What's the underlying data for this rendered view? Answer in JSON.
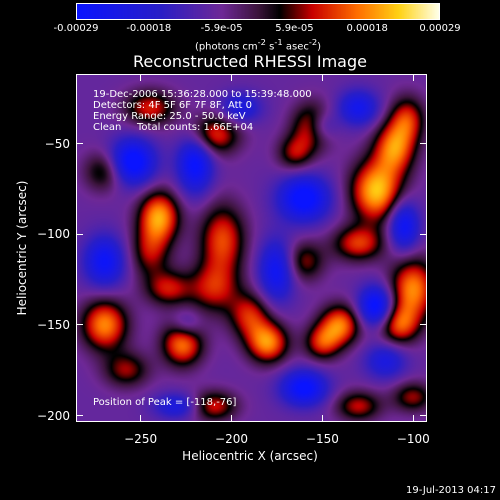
{
  "colorbar": {
    "ticks": [
      "-0.00029",
      "-0.00018",
      "-5.9e-05",
      "5.9e-05",
      "0.00018",
      "0.00029"
    ],
    "units_html": "(photons cm<sup>-2</sup> s<sup>-1</sup> asec<sup>-2</sup>)",
    "units": "(photons cm-2 s-1 asec-2)"
  },
  "title": "Reconstructed RHESSI Image",
  "info": {
    "line1": "19-Dec-2006 15:36:28.000 to 15:39:48.000",
    "line2": "Detectors: 4F 5F 6F 7F 8F, Att 0",
    "line3": "Energy Range: 25.0 - 50.0 keV",
    "line4_a": "Clean",
    "line4_b": "Total counts: 1.66E+04",
    "peak": "Position of Peak = [-118,-76]"
  },
  "timestamp": "19-Jul-2013 04:17",
  "chart_data": {
    "type": "heatmap",
    "title": "Reconstructed RHESSI Image",
    "xlabel": "Heliocentric X (arcsec)",
    "ylabel": "Heliocentric Y (arcsec)",
    "xlim": [
      -285,
      -93
    ],
    "ylim": [
      -203,
      -12
    ],
    "xticks": [
      -250,
      -200,
      -150,
      -100
    ],
    "yticks": [
      -200,
      -150,
      -100,
      -50
    ],
    "colorbar_range": [
      -0.00029,
      0.00029
    ],
    "colormap": "blue-purple-black-red-orange-yellow-white",
    "peak": [
      -118,
      -76
    ],
    "blobs": [
      {
        "x": -120,
        "y": -76,
        "v": 1.0,
        "sx": 10,
        "sy": 12
      },
      {
        "x": -110,
        "y": -52,
        "v": 0.8,
        "sx": 8,
        "sy": 10
      },
      {
        "x": -103,
        "y": -36,
        "v": 0.6,
        "sx": 7,
        "sy": 9
      },
      {
        "x": -100,
        "y": -130,
        "v": 0.85,
        "sx": 9,
        "sy": 12
      },
      {
        "x": -108,
        "y": -150,
        "v": 0.7,
        "sx": 8,
        "sy": 8
      },
      {
        "x": -140,
        "y": -150,
        "v": 0.8,
        "sx": 8,
        "sy": 8
      },
      {
        "x": -150,
        "y": -160,
        "v": 0.6,
        "sx": 7,
        "sy": 7
      },
      {
        "x": -205,
        "y": -103,
        "v": 0.7,
        "sx": 9,
        "sy": 14
      },
      {
        "x": -210,
        "y": -130,
        "v": 0.55,
        "sx": 10,
        "sy": 10
      },
      {
        "x": -180,
        "y": -160,
        "v": 0.85,
        "sx": 8,
        "sy": 8
      },
      {
        "x": -190,
        "y": -145,
        "v": 0.6,
        "sx": 8,
        "sy": 9
      },
      {
        "x": -227,
        "y": -160,
        "v": 0.85,
        "sx": 8,
        "sy": 9
      },
      {
        "x": -240,
        "y": -90,
        "v": 0.9,
        "sx": 8,
        "sy": 10
      },
      {
        "x": -245,
        "y": -110,
        "v": 0.5,
        "sx": 8,
        "sy": 10
      },
      {
        "x": -270,
        "y": -150,
        "v": 0.85,
        "sx": 9,
        "sy": 10
      },
      {
        "x": -258,
        "y": -175,
        "v": 0.5,
        "sx": 9,
        "sy": 7
      },
      {
        "x": -235,
        "y": -130,
        "v": 0.55,
        "sx": 9,
        "sy": 7
      },
      {
        "x": -155,
        "y": -40,
        "v": 0.7,
        "sx": 8,
        "sy": 9
      },
      {
        "x": -165,
        "y": -55,
        "v": 0.5,
        "sx": 7,
        "sy": 7
      },
      {
        "x": -210,
        "y": -45,
        "v": 0.7,
        "sx": 10,
        "sy": 8
      },
      {
        "x": -245,
        "y": -30,
        "v": 0.6,
        "sx": 10,
        "sy": 7
      },
      {
        "x": -270,
        "y": -65,
        "v": 0.5,
        "sx": 8,
        "sy": 8
      },
      {
        "x": -130,
        "y": -105,
        "v": 0.65,
        "sx": 10,
        "sy": 7
      },
      {
        "x": -160,
        "y": -115,
        "v": 0.5,
        "sx": 8,
        "sy": 8
      },
      {
        "x": -210,
        "y": -195,
        "v": 0.6,
        "sx": 9,
        "sy": 6
      },
      {
        "x": -130,
        "y": -195,
        "v": 0.55,
        "sx": 9,
        "sy": 6
      },
      {
        "x": -100,
        "y": -190,
        "v": 0.5,
        "sx": 8,
        "sy": 6
      },
      {
        "x": -255,
        "y": -60,
        "v": -0.9,
        "sx": 9,
        "sy": 9
      },
      {
        "x": -220,
        "y": -60,
        "v": -0.8,
        "sx": 7,
        "sy": 12
      },
      {
        "x": -160,
        "y": -80,
        "v": -0.85,
        "sx": 10,
        "sy": 9
      },
      {
        "x": -150,
        "y": -40,
        "v": -0.5,
        "sx": 6,
        "sy": 6
      },
      {
        "x": -175,
        "y": -120,
        "v": -0.7,
        "sx": 7,
        "sy": 12
      },
      {
        "x": -120,
        "y": -140,
        "v": -0.9,
        "sx": 7,
        "sy": 8
      },
      {
        "x": -105,
        "y": -95,
        "v": -0.75,
        "sx": 6,
        "sy": 10
      },
      {
        "x": -270,
        "y": -115,
        "v": -0.7,
        "sx": 8,
        "sy": 10
      },
      {
        "x": -160,
        "y": -185,
        "v": -0.8,
        "sx": 9,
        "sy": 7
      },
      {
        "x": -230,
        "y": -195,
        "v": -0.5,
        "sx": 9,
        "sy": 5
      },
      {
        "x": -115,
        "y": -170,
        "v": -0.5,
        "sx": 8,
        "sy": 7
      },
      {
        "x": -195,
        "y": -30,
        "v": -0.5,
        "sx": 8,
        "sy": 6
      },
      {
        "x": -225,
        "y": -150,
        "v": -0.4,
        "sx": 6,
        "sy": 6
      },
      {
        "x": -130,
        "y": -30,
        "v": -0.6,
        "sx": 8,
        "sy": 7
      }
    ]
  }
}
